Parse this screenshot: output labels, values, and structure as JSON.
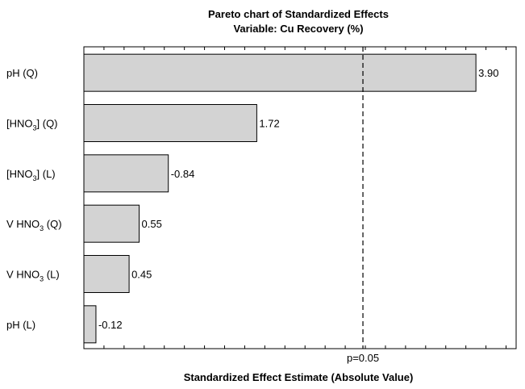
{
  "chart_data": {
    "type": "bar",
    "orientation": "horizontal",
    "title": "Pareto chart of Standardized Effects",
    "subtitle": "Variable: Cu Recovery (%)",
    "xlabel": "Standardized Effect Estimate (Absolute Value)",
    "ylabel": "",
    "xlim": [
      0,
      4.3
    ],
    "categories": [
      {
        "label": "pH (Q)",
        "text": "pH (Q)"
      },
      {
        "label": "[HNO3] (Q)",
        "text": "[HNO",
        "sub": "3",
        "rest": "] (Q)"
      },
      {
        "label": "[HNO3] (L)",
        "text": "[HNO",
        "sub": "3",
        "rest": "] (L)"
      },
      {
        "label": "V HNO3 (Q)",
        "text": "V HNO",
        "sub": "3",
        "rest": " (Q)"
      },
      {
        "label": "V HNO3 (L)",
        "text": "V HNO",
        "sub": "3",
        "rest": " (L)"
      },
      {
        "label": "pH (L)",
        "text": "pH (L)"
      }
    ],
    "values": [
      3.9,
      1.72,
      -0.84,
      0.55,
      0.45,
      -0.12
    ],
    "value_labels": [
      "3.90",
      "1.72",
      "-0.84",
      "0.55",
      "0.45",
      "-0.12"
    ],
    "reference_line": {
      "value": 2.776,
      "label": "p=0.05",
      "style": "dashed"
    },
    "bar_color": "#d3d3d3",
    "grid": false,
    "legend": "none"
  }
}
